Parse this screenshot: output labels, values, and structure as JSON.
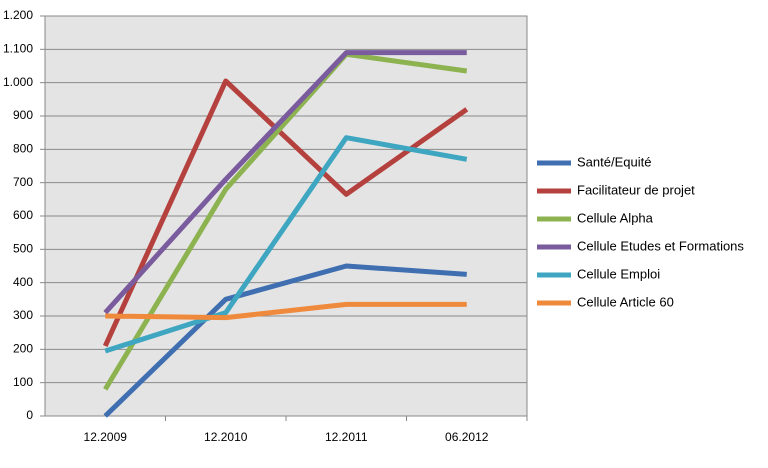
{
  "chart_data": {
    "type": "line",
    "categories": [
      "12.2009",
      "12.2010",
      "12.2011",
      "06.2012"
    ],
    "series": [
      {
        "name": "Santé/Equité",
        "color": "#3f6fb0",
        "values": [
          0,
          350,
          450,
          425
        ]
      },
      {
        "name": "Facilitateur de projet",
        "color": "#b5413e",
        "values": [
          210,
          1005,
          665,
          920
        ]
      },
      {
        "name": "Cellule Alpha",
        "color": "#8db350",
        "values": [
          80,
          680,
          1085,
          1035
        ]
      },
      {
        "name": "Cellule Etudes et Formations",
        "color": "#7a5c9e",
        "values": [
          310,
          710,
          1090,
          1090
        ]
      },
      {
        "name": "Cellule Emploi",
        "color": "#3ea6c0",
        "values": [
          195,
          310,
          835,
          770
        ]
      },
      {
        "name": "Cellule Article 60",
        "color": "#ef8a3c",
        "values": [
          300,
          295,
          335,
          335
        ]
      }
    ],
    "ylim": [
      0,
      1200
    ],
    "yticks": [
      0,
      100,
      200,
      300,
      400,
      500,
      600,
      700,
      800,
      900,
      {
        "value": 1000,
        "label": "1.000"
      },
      {
        "value": 1100,
        "label": "1.100"
      },
      {
        "value": 1200,
        "label": "1.200"
      }
    ],
    "grid": true,
    "legend": "right"
  }
}
